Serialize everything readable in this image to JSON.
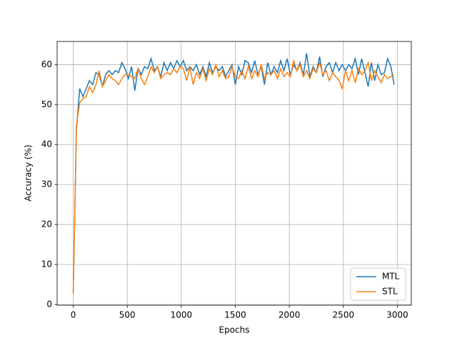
{
  "chart_data": {
    "type": "line",
    "xlabel": "Epochs",
    "ylabel": "Accuracy (%)",
    "x": [
      0,
      30,
      60,
      90,
      120,
      150,
      180,
      210,
      240,
      270,
      300,
      330,
      360,
      390,
      420,
      450,
      480,
      510,
      540,
      570,
      600,
      630,
      660,
      690,
      720,
      750,
      780,
      810,
      840,
      870,
      900,
      930,
      960,
      990,
      1020,
      1050,
      1080,
      1110,
      1140,
      1170,
      1200,
      1230,
      1260,
      1290,
      1320,
      1350,
      1380,
      1410,
      1440,
      1470,
      1500,
      1530,
      1560,
      1590,
      1620,
      1650,
      1680,
      1710,
      1740,
      1770,
      1800,
      1830,
      1860,
      1890,
      1920,
      1950,
      1980,
      2010,
      2040,
      2070,
      2100,
      2130,
      2160,
      2190,
      2220,
      2250,
      2280,
      2310,
      2340,
      2370,
      2400,
      2430,
      2460,
      2490,
      2520,
      2550,
      2580,
      2610,
      2640,
      2670,
      2700,
      2730,
      2760,
      2790,
      2820,
      2850,
      2880,
      2910,
      2940,
      2970
    ],
    "series": [
      {
        "name": "MTL",
        "color": "#1f77b4",
        "values": [
          3,
          44,
          54,
          52,
          54,
          56,
          55,
          58,
          57.5,
          54.5,
          57.5,
          58.5,
          57.5,
          58.5,
          58,
          60.5,
          59,
          56.5,
          59.5,
          53.5,
          59,
          57.5,
          59.5,
          59,
          61.5,
          58.5,
          59.5,
          57,
          60.5,
          58.5,
          60.5,
          59,
          61,
          59.5,
          61,
          58.5,
          59.5,
          58.5,
          60,
          57.5,
          59.5,
          57,
          60.5,
          58,
          59.5,
          58.5,
          59.5,
          57,
          58.5,
          60,
          55,
          59.5,
          57.5,
          61,
          60.5,
          58,
          61,
          57.5,
          59.5,
          55,
          60.5,
          57.5,
          59.5,
          58,
          61,
          58.5,
          61.5,
          57.5,
          60,
          58.5,
          60.5,
          57.5,
          62.8,
          57,
          59.5,
          58,
          62,
          57,
          59.5,
          60.5,
          58,
          60.5,
          58.5,
          60,
          58.5,
          60,
          59,
          61.5,
          57.5,
          61.5,
          58,
          54.5,
          60.5,
          56,
          60,
          57.5,
          58,
          61.5,
          59.5,
          55
        ]
      },
      {
        "name": "STL",
        "color": "#ff7f0e",
        "values": [
          2.8,
          45,
          50.5,
          51.5,
          52,
          54.5,
          53,
          55,
          58.5,
          54.5,
          56,
          57.5,
          56.5,
          56,
          55,
          56.5,
          57.5,
          57.5,
          57,
          56.5,
          59,
          56.5,
          55,
          57,
          59.5,
          58,
          59.5,
          56.5,
          57.5,
          58,
          57.5,
          59,
          58,
          59.5,
          59,
          56,
          59.5,
          55,
          58,
          56.5,
          59,
          56,
          59,
          57.5,
          60,
          57,
          58.5,
          56.5,
          57,
          59.5,
          57,
          56.5,
          58.5,
          56.5,
          59.5,
          56.5,
          58.5,
          57,
          60,
          56.5,
          58,
          57.5,
          58.5,
          56.5,
          59,
          57,
          58,
          57,
          61,
          58.5,
          60,
          57,
          58.5,
          56.5,
          59,
          58,
          60.5,
          57.5,
          58.5,
          56,
          58,
          57,
          56,
          54,
          58.5,
          56,
          58.5,
          55.5,
          59,
          57.5,
          58.5,
          60.5,
          56,
          58.5,
          57,
          55.5,
          57.5,
          56.5,
          57,
          57.5
        ]
      }
    ],
    "xlim": [
      -149,
      3129
    ],
    "ylim": [
      -0.2,
      65.8
    ],
    "xticks": [
      0,
      500,
      1000,
      1500,
      2000,
      2500,
      3000
    ],
    "yticks": [
      0,
      10,
      20,
      30,
      40,
      50,
      60
    ],
    "grid": true,
    "legend": "lower right"
  }
}
